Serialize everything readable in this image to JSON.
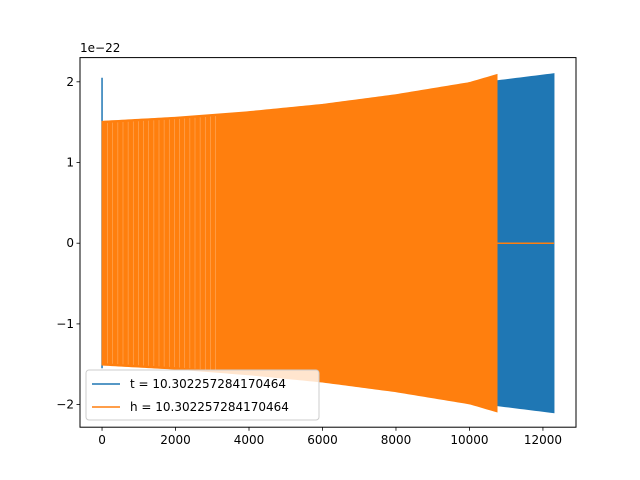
{
  "chart_data": {
    "type": "line",
    "title": "",
    "xlabel": "",
    "ylabel": "",
    "scale_label": "1e−22",
    "xlim": [
      -600,
      12900
    ],
    "ylim": [
      -2.28,
      2.3
    ],
    "xticks": [
      0,
      2000,
      4000,
      6000,
      8000,
      10000,
      12000
    ],
    "xtick_labels": [
      "0",
      "2000",
      "4000",
      "6000",
      "8000",
      "10000",
      "12000"
    ],
    "yticks": [
      -2,
      -1,
      0,
      1,
      2
    ],
    "ytick_labels": [
      "−2",
      "−1",
      "0",
      "1",
      "2"
    ],
    "grid": false,
    "legend_position": "lower-left",
    "series": [
      {
        "name": "t = 10.302257284170464",
        "color": "#1f77b4",
        "kind": "chirp",
        "start_spike": 2.05,
        "envelope": [
          {
            "x": 0,
            "y": 1.5
          },
          {
            "x": 2000,
            "y": 1.55
          },
          {
            "x": 4000,
            "y": 1.61
          },
          {
            "x": 6000,
            "y": 1.7
          },
          {
            "x": 8000,
            "y": 1.82
          },
          {
            "x": 10000,
            "y": 1.97
          },
          {
            "x": 12300,
            "y": 2.1
          }
        ],
        "end_x": 12300
      },
      {
        "name": "h = 10.302257284170464",
        "color": "#ff7f0e",
        "kind": "chirp",
        "start_spike": 0,
        "envelope": [
          {
            "x": 0,
            "y": 1.51
          },
          {
            "x": 2000,
            "y": 1.56
          },
          {
            "x": 4000,
            "y": 1.63
          },
          {
            "x": 6000,
            "y": 1.72
          },
          {
            "x": 8000,
            "y": 1.84
          },
          {
            "x": 10000,
            "y": 1.99
          },
          {
            "x": 10750,
            "y": 2.09
          }
        ],
        "end_x": 10750,
        "zero_until": 12300
      }
    ]
  }
}
